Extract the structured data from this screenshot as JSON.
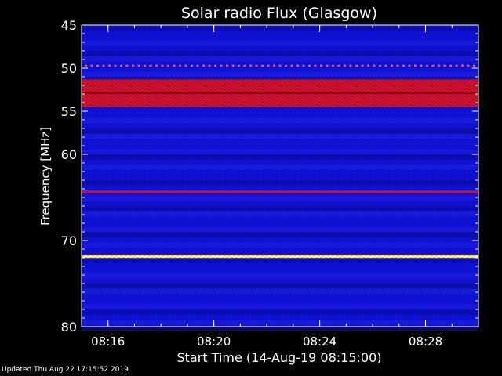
{
  "chart_data": {
    "type": "heatmap",
    "title": "Solar radio Flux (Glasgow)",
    "xlabel": "Start Time (14-Aug-19 08:15:00)",
    "ylabel": "Frequency [MHz]",
    "ylim": [
      45,
      80
    ],
    "xlim_minutes_after_start": [
      0,
      15
    ],
    "x_ticks": [
      {
        "label": "08:16",
        "minutes_after_start": 1
      },
      {
        "label": "08:20",
        "minutes_after_start": 5
      },
      {
        "label": "08:24",
        "minutes_after_start": 9
      },
      {
        "label": "08:28",
        "minutes_after_start": 13
      }
    ],
    "y_ticks": [
      45,
      50,
      55,
      60,
      70,
      80
    ],
    "colors": {
      "background_low": "#1010d8",
      "mid": "#0a0a8a",
      "high": "#e01010",
      "peak": "#ffff60"
    },
    "intense_bands_mhz": [
      {
        "freq_from": 51.3,
        "freq_to": 54.5,
        "level": "high"
      },
      {
        "freq_from": 49.6,
        "freq_to": 49.8,
        "level": "high-dotted"
      },
      {
        "freq_from": 64.2,
        "freq_to": 64.5,
        "level": "high"
      },
      {
        "freq_from": 71.7,
        "freq_to": 72.0,
        "level": "peak"
      }
    ],
    "grid": false,
    "legend": "none"
  },
  "footer": {
    "updated": "Updated Thu Aug 22 17:15:52 2019"
  }
}
